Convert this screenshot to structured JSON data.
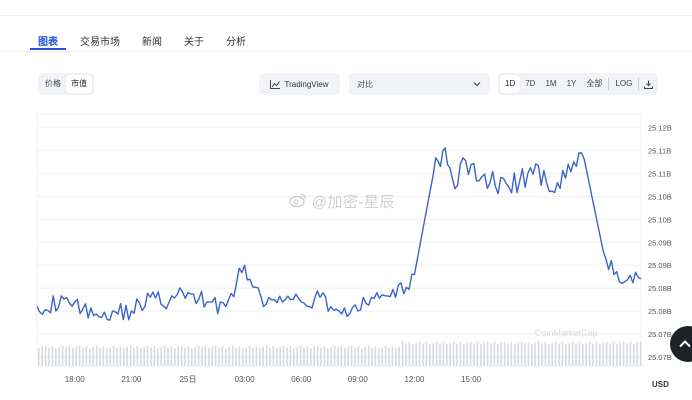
{
  "tabs": [
    {
      "label": "图表",
      "active": true
    },
    {
      "label": "交易市场",
      "active": false
    },
    {
      "label": "新闻",
      "active": false
    },
    {
      "label": "关于",
      "active": false
    },
    {
      "label": "分析",
      "active": false
    }
  ],
  "toolbar": {
    "metric_options": [
      {
        "label": "价格",
        "active": false
      },
      {
        "label": "市值",
        "active": true
      }
    ],
    "tradingview_label": "TradingView",
    "compare_placeholder": "对比",
    "ranges": [
      {
        "label": "1D",
        "active": true
      },
      {
        "label": "7D",
        "active": false
      },
      {
        "label": "1M",
        "active": false
      },
      {
        "label": "1Y",
        "active": false
      },
      {
        "label": "全部",
        "active": false
      }
    ],
    "log_label": "LOG"
  },
  "watermark": {
    "text": "@加密-星辰",
    "secondary": "CoinMarketCap"
  },
  "colors": {
    "accent": "#2554d6",
    "line": "#3b64c8",
    "volume": "#c9ced6",
    "grid": "#eef0f3"
  },
  "chart_data": {
    "type": "line",
    "xlabel": "",
    "ylabel": "",
    "y_unit": "USD",
    "x_ticks": [
      "18:00",
      "21:00",
      "25日",
      "03:00",
      "06:00",
      "09:00",
      "12:00",
      "15:00"
    ],
    "y_ticks": [
      "25.12B",
      "25.11B",
      "25.11B",
      "25.10B",
      "25.10B",
      "25.09B",
      "25.09B",
      "25.08B",
      "25.08B",
      "25.07B",
      "25.07B"
    ],
    "y_tick_values": [
      25.12,
      25.115,
      25.11,
      25.105,
      25.1,
      25.095,
      25.09,
      25.085,
      25.08,
      25.075,
      25.07
    ],
    "ylim": [
      25.068,
      25.123
    ],
    "x_range_hours": [
      -8,
      24
    ],
    "x_tick_hours": [
      0,
      3,
      6,
      9,
      12,
      15,
      18,
      21
    ],
    "series": [
      {
        "x_hours": [
          -8,
          -6,
          -5,
          -4,
          -3,
          -2,
          -1,
          0,
          1,
          2,
          3,
          4,
          5,
          6,
          7,
          8,
          9,
          10,
          11,
          12,
          13,
          13.5,
          14,
          15,
          16,
          17,
          18,
          19,
          20,
          21,
          22,
          23,
          24
        ],
        "values": [
          25.081,
          25.082,
          25.079,
          25.08,
          25.08,
          25.083,
          25.082,
          25.084,
          25.082,
          25.081,
          25.09,
          25.081,
          25.082,
          25.082,
          25.083,
          25.08,
          25.08,
          25.084,
          25.083,
          25.088,
          25.11,
          25.115,
          25.109,
          25.112,
          25.108,
          25.107,
          25.11,
          25.108,
          25.109,
          25.113,
          25.093,
          25.086,
          25.087
        ],
        "line_values_note": ""
      }
    ],
    "grid": true,
    "volume_bars": true
  }
}
